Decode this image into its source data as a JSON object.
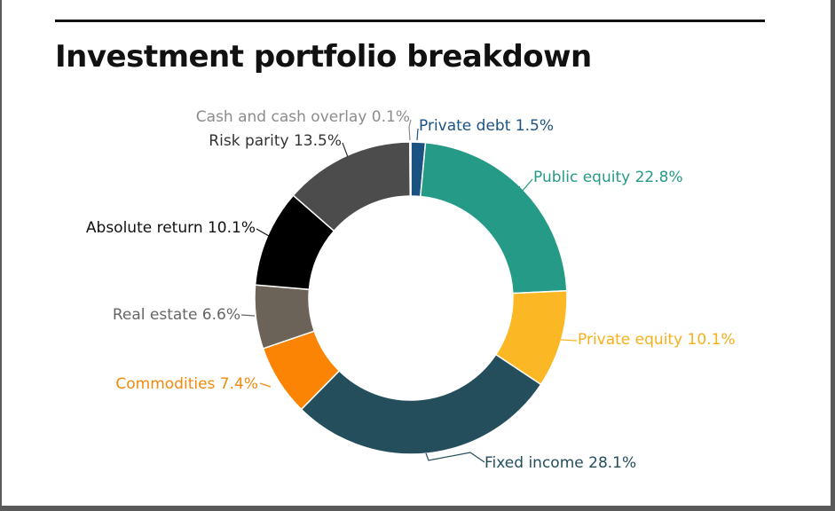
{
  "title": "Investment portfolio breakdown",
  "chart_data": {
    "type": "pie",
    "variant": "donut",
    "title": "Investment portfolio breakdown",
    "slices": [
      {
        "name": "Private debt",
        "value": 1.5,
        "label": "Private debt 1.5%",
        "color": "#1a5282",
        "label_color": "#1a5282"
      },
      {
        "name": "Public equity",
        "value": 22.8,
        "label": "Public equity 22.8%",
        "color": "#259b87",
        "label_color": "#259b87"
      },
      {
        "name": "Private equity",
        "value": 10.1,
        "label": "Private equity 10.1%",
        "color": "#fbb824",
        "label_color": "#f5b01a"
      },
      {
        "name": "Fixed income",
        "value": 28.1,
        "label": "Fixed income 28.1%",
        "color": "#244e5c",
        "label_color": "#244e5c"
      },
      {
        "name": "Commodities",
        "value": 7.4,
        "label": "Commodities 7.4%",
        "color": "#fb8404",
        "label_color": "#f28a0c"
      },
      {
        "name": "Real estate",
        "value": 6.6,
        "label": "Real estate 6.6%",
        "color": "#6c6358",
        "label_color": "#666666"
      },
      {
        "name": "Absolute return",
        "value": 10.1,
        "label": "Absolute return 10.1%",
        "color": "#000000",
        "label_color": "#111111"
      },
      {
        "name": "Risk parity",
        "value": 13.5,
        "label": "Risk parity 13.5%",
        "color": "#4c4c4c",
        "label_color": "#333333"
      },
      {
        "name": "Cash and cash overlay",
        "value": 0.1,
        "label": "Cash and cash overlay 0.1%",
        "color": "#9a9a9a",
        "label_color": "#8c8c8c"
      }
    ],
    "legend": "none"
  }
}
